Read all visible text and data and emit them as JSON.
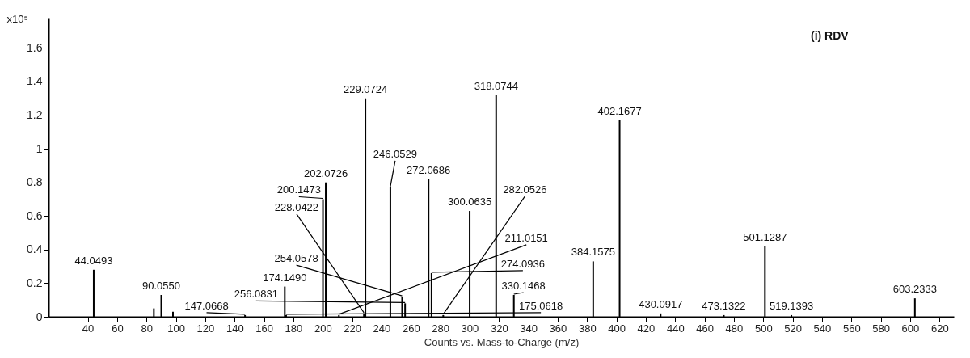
{
  "chart_data": {
    "type": "bar",
    "xlabel": "Counts vs. Mass-to-Charge (m/z)",
    "ylabel": "x10⁵",
    "color": "#000000",
    "grid": false,
    "x": [
      44.0493,
      85,
      90.055,
      98,
      147.0668,
      174.149,
      175.0618,
      200.1473,
      202.0726,
      211.0151,
      228.0422,
      229.0724,
      246.0529,
      254.0578,
      256.0831,
      272.0686,
      274.0936,
      282.0526,
      300.0635,
      318.0744,
      330.1468,
      384.1575,
      402.1677,
      430.0917,
      473.1322,
      501.1287,
      519.1393,
      603.2333
    ],
    "values": [
      0.28,
      0.05,
      0.13,
      0.03,
      0.01,
      0.18,
      0.01,
      0.7,
      0.8,
      0.01,
      0.02,
      1.3,
      0.77,
      0.12,
      0.08,
      0.82,
      0.26,
      0.01,
      0.63,
      1.32,
      0.13,
      0.33,
      1.17,
      0.02,
      0.01,
      0.42,
      0.01,
      0.11
    ],
    "xlim": [
      16,
      627
    ],
    "xticks": [
      40,
      60,
      80,
      100,
      120,
      140,
      160,
      180,
      200,
      220,
      240,
      260,
      280,
      300,
      320,
      340,
      360,
      380,
      400,
      420,
      440,
      460,
      480,
      500,
      520,
      540,
      560,
      580,
      600,
      620
    ],
    "ylim": [
      0,
      1.78
    ],
    "yticks": [
      0,
      0.2,
      0.4,
      0.6,
      0.8,
      1,
      1.2,
      1.4,
      1.6
    ],
    "annotations": [
      {
        "text": "44.0493",
        "x": 44.0493,
        "y": 0.28
      },
      {
        "text": "90.0550",
        "x": 90.055,
        "y": 0.13
      },
      {
        "text": "147.0668",
        "x": 147.0668,
        "y": 0.01
      },
      {
        "text": "174.1490",
        "x": 174.149,
        "y": 0.18
      },
      {
        "text": "175.0618",
        "x": 175.0618,
        "y": 0.01
      },
      {
        "text": "200.1473",
        "x": 200.1473,
        "y": 0.7
      },
      {
        "text": "202.0726",
        "x": 202.0726,
        "y": 0.8
      },
      {
        "text": "211.0151",
        "x": 211.0151,
        "y": 0.01
      },
      {
        "text": "228.0422",
        "x": 228.0422,
        "y": 0.02
      },
      {
        "text": "229.0724",
        "x": 229.0724,
        "y": 1.3
      },
      {
        "text": "246.0529",
        "x": 246.0529,
        "y": 0.77
      },
      {
        "text": "254.0578",
        "x": 254.0578,
        "y": 0.12
      },
      {
        "text": "256.0831",
        "x": 256.0831,
        "y": 0.08
      },
      {
        "text": "272.0686",
        "x": 272.0686,
        "y": 0.82
      },
      {
        "text": "274.0936",
        "x": 274.0936,
        "y": 0.26
      },
      {
        "text": "282.0526",
        "x": 282.0526,
        "y": 0.01
      },
      {
        "text": "300.0635",
        "x": 300.0635,
        "y": 0.63
      },
      {
        "text": "318.0744",
        "x": 318.0744,
        "y": 1.32
      },
      {
        "text": "330.1468",
        "x": 330.1468,
        "y": 0.13
      },
      {
        "text": "384.1575",
        "x": 384.1575,
        "y": 0.33
      },
      {
        "text": "402.1677",
        "x": 402.1677,
        "y": 1.17
      },
      {
        "text": "430.0917",
        "x": 430.0917,
        "y": 0.02
      },
      {
        "text": "473.1322",
        "x": 473.1322,
        "y": 0.01
      },
      {
        "text": "501.1287",
        "x": 501.1287,
        "y": 0.42
      },
      {
        "text": "519.1393",
        "x": 519.1393,
        "y": 0.01
      },
      {
        "text": "603.2333",
        "x": 603.2333,
        "y": 0.11
      },
      "(i) RDV"
    ]
  }
}
